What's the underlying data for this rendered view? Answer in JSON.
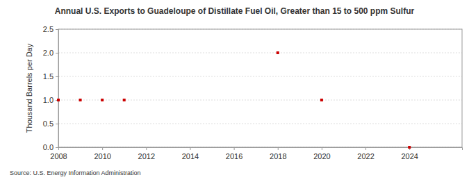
{
  "chart_data": {
    "type": "scatter",
    "title": "Annual U.S. Exports to Guadeloupe of Distillate Fuel Oil, Greater than 15 to 500 ppm Sulfur",
    "y_label": "Thousand Barrels per Day",
    "annotation": "Source: U.S. Energy Information Administration",
    "x": [
      2008,
      2009,
      2010,
      2011,
      2018,
      2020,
      2024
    ],
    "values": [
      1,
      1,
      1,
      1,
      2,
      1,
      0
    ],
    "color": "#cc0000",
    "marker": "square",
    "xlim": [
      2008,
      2026.4
    ],
    "xticks": [
      2008,
      2010,
      2012,
      2014,
      2016,
      2018,
      2020,
      2022,
      2024
    ],
    "ylim": [
      0,
      2.5
    ],
    "yticks": [
      {
        "value": 0,
        "label": "0.0"
      },
      {
        "value": 0.5,
        "label": "0.5"
      },
      {
        "value": 1,
        "label": "1.0"
      },
      {
        "value": 1.5,
        "label": "1.5"
      },
      {
        "value": 2,
        "label": "2.0"
      },
      {
        "value": 2.5,
        "label": "2.5"
      }
    ],
    "grid": true
  }
}
